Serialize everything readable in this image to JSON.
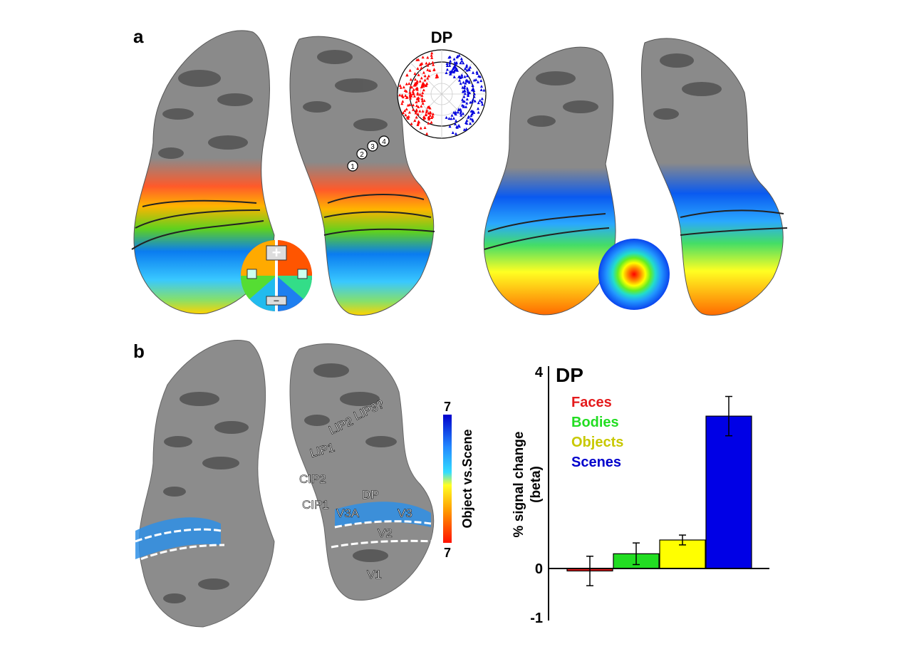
{
  "panel_a": {
    "letter": "a",
    "polar_plot_title": "DP",
    "polar_key_plus": "+",
    "polar_key_minus": "−",
    "site_numbers": [
      "1",
      "2",
      "3",
      "4"
    ]
  },
  "panel_b": {
    "letter": "b",
    "colorbar": {
      "title": "Object vs.Scene",
      "top_value": "7",
      "bottom_value": "7"
    },
    "area_labels": [
      "LIP3?",
      "LIP2",
      "LIP1",
      "CIP2",
      "CIP1",
      "DP",
      "V3A",
      "V3",
      "V2",
      "V1"
    ]
  },
  "chart_data": {
    "type": "bar",
    "title": "DP",
    "ylabel_line1": "% signal change",
    "ylabel_line2": "(beta)",
    "categories": [
      "Faces",
      "Bodies",
      "Objects",
      "Scenes"
    ],
    "values": [
      -0.05,
      0.3,
      0.58,
      3.1
    ],
    "errors": [
      0.3,
      0.22,
      0.1,
      0.4
    ],
    "colors": [
      "#e41a1c",
      "#22dd22",
      "#ffff00",
      "#0000e6"
    ],
    "legend_colors": [
      "#e41a1c",
      "#22dd22",
      "#c8c800",
      "#0000cc"
    ],
    "ylim": [
      -1,
      4
    ],
    "yticks": [
      "4",
      "0",
      "-1"
    ],
    "ytick_values": [
      4,
      0,
      -1
    ]
  }
}
